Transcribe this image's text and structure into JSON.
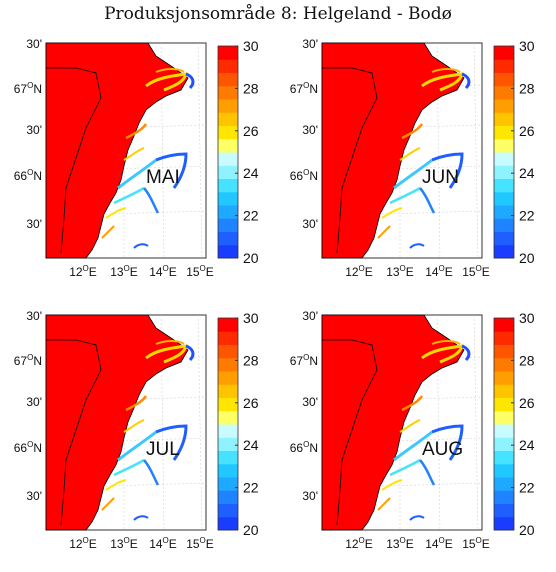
{
  "title": "Produksjonsområde 8: Helgeland - Bodø",
  "lat_labels": [
    "30'",
    "67ON",
    "30'",
    "66ON",
    "30'"
  ],
  "lon_labels": [
    "12OE",
    "13OE",
    "14OE",
    "15OE"
  ],
  "colorbar": {
    "ticks": [
      "30",
      "28",
      "26",
      "24",
      "22",
      "20"
    ],
    "colors": [
      "#1a3cff",
      "#1f5fff",
      "#1f83ff",
      "#1ea8ff",
      "#20c8ff",
      "#45e3ff",
      "#8ef2ff",
      "#c8fbff",
      "#ffff66",
      "#ffe600",
      "#ffc300",
      "#ff9e00",
      "#ff7a00",
      "#ff5500",
      "#ff2a00",
      "#ff0000"
    ]
  },
  "panels": [
    {
      "month": "MAI"
    },
    {
      "month": "JUN"
    },
    {
      "month": "JUL"
    },
    {
      "month": "AUG"
    }
  ]
}
